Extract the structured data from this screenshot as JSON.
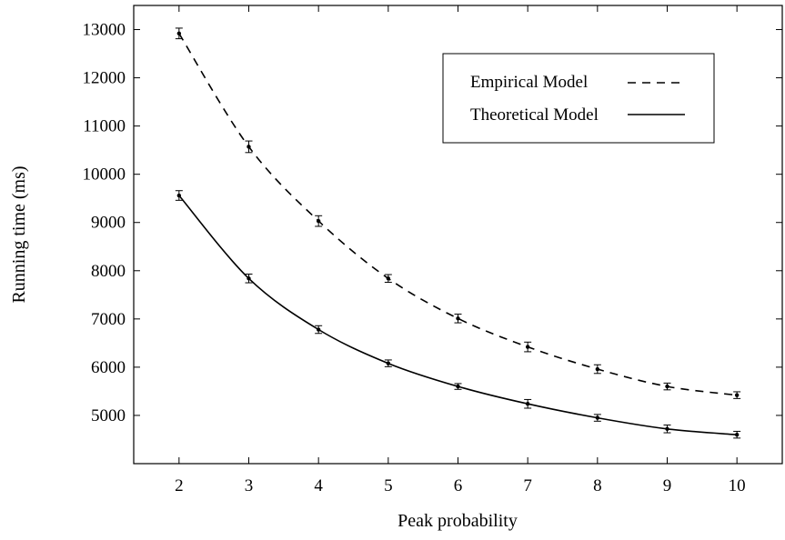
{
  "chart_data": {
    "type": "line",
    "title": "",
    "xlabel": "Peak probability",
    "ylabel": "Running time (ms)",
    "x": [
      2,
      3,
      4,
      5,
      6,
      7,
      8,
      9,
      10
    ],
    "xlim": [
      1.35,
      10.65
    ],
    "ylim": [
      4000,
      13500
    ],
    "xticks": [
      2,
      3,
      4,
      5,
      6,
      7,
      8,
      9,
      10
    ],
    "yticks": [
      5000,
      6000,
      7000,
      8000,
      9000,
      10000,
      11000,
      12000,
      13000
    ],
    "grid": false,
    "legend_position": "top-right",
    "series": [
      {
        "name": "Empirical Model",
        "style": "dashed",
        "color": "#000000",
        "values": [
          12920,
          10570,
          9030,
          7840,
          7010,
          6420,
          5960,
          5600,
          5420
        ],
        "error": [
          110,
          120,
          110,
          80,
          90,
          100,
          90,
          70,
          70
        ]
      },
      {
        "name": "Theoretical Model",
        "style": "solid",
        "color": "#000000",
        "values": [
          9560,
          7840,
          6780,
          6080,
          5600,
          5240,
          4950,
          4720,
          4600
        ],
        "error": [
          100,
          90,
          80,
          70,
          60,
          90,
          70,
          80,
          70
        ]
      }
    ]
  }
}
